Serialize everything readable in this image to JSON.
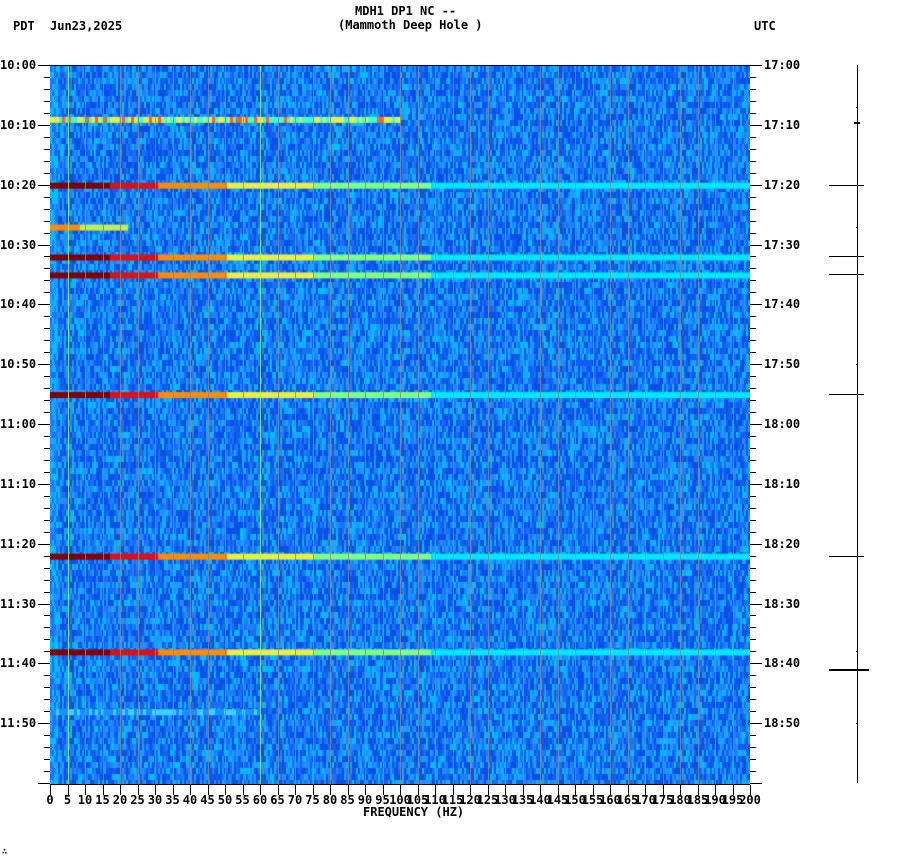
{
  "header": {
    "station_line": "MDH1 DP1 NC --",
    "station_name": "(Mammoth Deep Hole )",
    "left_tz": "PDT",
    "date": "Jun23,2025",
    "right_tz": "UTC"
  },
  "footer_mark": "∴",
  "colors": {
    "background": "#1a66f0",
    "noise_light": "#1e90ff",
    "cyan": "#00e0ff",
    "yellow": "#e8f040",
    "orange": "#ff8c00",
    "red": "#e01010",
    "darkred": "#800000",
    "gridline": "#808890"
  },
  "chart_data": {
    "type": "heatmap",
    "title": "MDH1 DP1 NC -- (Mammoth Deep Hole )",
    "subtitle": "PDT Jun23,2025",
    "xlabel": "FREQUENCY (HZ)",
    "ylabel_left": "PDT",
    "ylabel_right": "UTC",
    "xlim": [
      0,
      200
    ],
    "x_ticks": [
      0,
      5,
      10,
      15,
      20,
      25,
      30,
      35,
      40,
      45,
      50,
      55,
      60,
      65,
      70,
      75,
      80,
      85,
      90,
      95,
      100,
      105,
      110,
      115,
      120,
      125,
      130,
      135,
      140,
      145,
      150,
      155,
      160,
      165,
      170,
      175,
      180,
      185,
      190,
      195,
      200
    ],
    "y_ticks_left": [
      "10:00",
      "10:10",
      "10:20",
      "10:30",
      "10:40",
      "10:50",
      "11:00",
      "11:10",
      "11:20",
      "11:30",
      "11:40",
      "11:50"
    ],
    "y_ticks_right": [
      "17:00",
      "17:10",
      "17:20",
      "17:30",
      "17:40",
      "17:50",
      "18:00",
      "18:10",
      "18:20",
      "18:30",
      "18:40",
      "18:50"
    ],
    "time_range_pdt": [
      "10:00",
      "12:00"
    ],
    "colormap": "jet",
    "persistent_lines_hz": [
      5,
      60
    ],
    "events": [
      {
        "time_pdt": "10:09",
        "intensity": "moderate",
        "max_freq_hz": 100
      },
      {
        "time_pdt": "10:20",
        "intensity": "strong",
        "max_freq_hz": 200
      },
      {
        "time_pdt": "10:27",
        "intensity": "weak",
        "max_freq_hz": 22
      },
      {
        "time_pdt": "10:32",
        "intensity": "strong",
        "max_freq_hz": 200
      },
      {
        "time_pdt": "10:35",
        "intensity": "strong",
        "max_freq_hz": 200
      },
      {
        "time_pdt": "10:55",
        "intensity": "strong",
        "max_freq_hz": 200
      },
      {
        "time_pdt": "11:22",
        "intensity": "strong",
        "max_freq_hz": 200
      },
      {
        "time_pdt": "11:38",
        "intensity": "strong",
        "max_freq_hz": 200
      },
      {
        "time_pdt": "11:48",
        "intensity": "faint",
        "max_freq_hz": 60
      }
    ],
    "grid": true
  }
}
